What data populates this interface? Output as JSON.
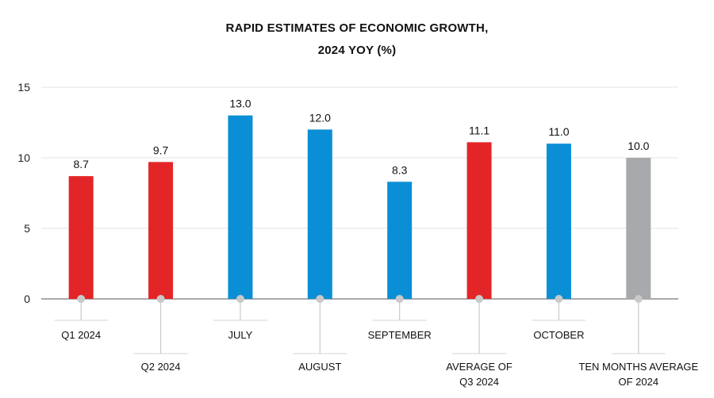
{
  "chart_data": {
    "type": "bar",
    "title_line1": "RAPID ESTIMATES OF ECONOMIC GROWTH,",
    "title_line2": "2024 YOY (%)",
    "xlabel": "",
    "ylabel": "",
    "ylim": [
      0,
      15
    ],
    "yticks": [
      0,
      5,
      10,
      15
    ],
    "grid": true,
    "categories": [
      [
        "Q1 2024"
      ],
      [
        "Q2 2024"
      ],
      [
        "JULY"
      ],
      [
        "AUGUST"
      ],
      [
        "SEPTEMBER"
      ],
      [
        "AVERAGE OF",
        "Q3 2024"
      ],
      [
        "OCTOBER"
      ],
      [
        "TEN MONTHS AVERAGE",
        "OF 2024"
      ]
    ],
    "values": [
      8.7,
      9.7,
      13.0,
      12.0,
      8.3,
      11.1,
      11.0,
      10.0
    ],
    "labels": [
      "8.7",
      "9.7",
      "13.0",
      "12.0",
      "8.3",
      "11.1",
      "11.0",
      "10.0"
    ],
    "colors": [
      "#e42527",
      "#e42527",
      "#0a8fd6",
      "#0a8fd6",
      "#0a8fd6",
      "#e42527",
      "#0a8fd6",
      "#a7a9ac"
    ]
  }
}
